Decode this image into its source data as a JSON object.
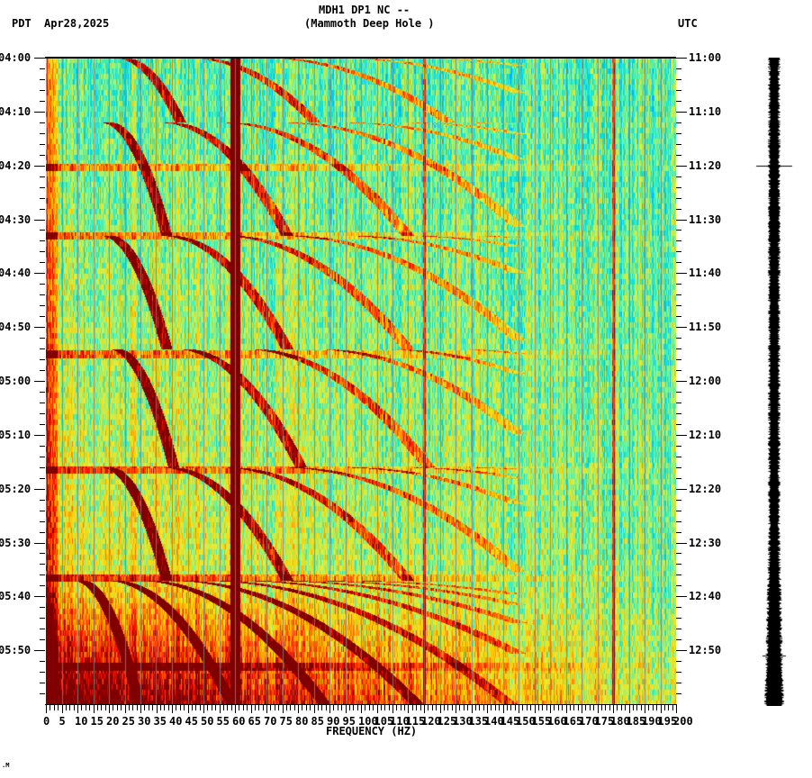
{
  "header": {
    "station_line": "MDH1 DP1 NC --",
    "station_name": "(Mammoth Deep Hole )",
    "left_timezone": "PDT",
    "date": "Apr28,2025",
    "right_timezone": "UTC"
  },
  "footnote": ".M",
  "chart_data": {
    "type": "heatmap",
    "title": "MDH1 DP1 NC -- (Mammoth Deep Hole ) spectrogram",
    "xlabel": "FREQUENCY (HZ)",
    "ylabel_left": "PDT",
    "ylabel_right": "UTC",
    "xlim": [
      0,
      200
    ],
    "x_ticks": [
      "0",
      "5",
      "10",
      "15",
      "20",
      "25",
      "30",
      "35",
      "40",
      "45",
      "50",
      "55",
      "60",
      "65",
      "70",
      "75",
      "80",
      "85",
      "90",
      "95",
      "100",
      "105",
      "110",
      "115",
      "120",
      "125",
      "130",
      "135",
      "140",
      "145",
      "150",
      "155",
      "160",
      "165",
      "170",
      "175",
      "180",
      "185",
      "190",
      "195",
      "200"
    ],
    "y_ticks_left": [
      "04:00",
      "04:10",
      "04:20",
      "04:30",
      "04:40",
      "04:50",
      "05:00",
      "05:10",
      "05:20",
      "05:30",
      "05:40",
      "05:50"
    ],
    "y_ticks_right": [
      "11:00",
      "11:10",
      "11:20",
      "11:30",
      "11:40",
      "11:50",
      "12:00",
      "12:10",
      "12:20",
      "12:30",
      "12:40",
      "12:50"
    ],
    "y_range_minutes": 120,
    "minor_tick_minutes": 2,
    "grid": "vertical lines every 5 Hz",
    "colormap": [
      "#0050ff",
      "#00aaff",
      "#00e0e0",
      "#60f0a0",
      "#e0f040",
      "#ffd000",
      "#ff7000",
      "#ff1000",
      "#800000"
    ],
    "persistent_lines_hz": [
      60,
      120,
      180
    ],
    "noise_bands_minutes": [
      20.3,
      33,
      55,
      76.5,
      96.5,
      113
    ],
    "arc_families": [
      {
        "start_min": 0,
        "end_min": 12,
        "base_hz": 28
      },
      {
        "start_min": 12,
        "end_min": 33,
        "base_hz": 20
      },
      {
        "start_min": 33,
        "end_min": 54,
        "base_hz": 20
      },
      {
        "start_min": 54,
        "end_min": 76,
        "base_hz": 24
      },
      {
        "start_min": 76,
        "end_min": 97,
        "base_hz": 20
      },
      {
        "start_min": 97,
        "end_min": 120,
        "base_hz": 4
      }
    ],
    "legend": "none"
  },
  "seismogram": {
    "marker_minutes": [
      20,
      111
    ]
  }
}
